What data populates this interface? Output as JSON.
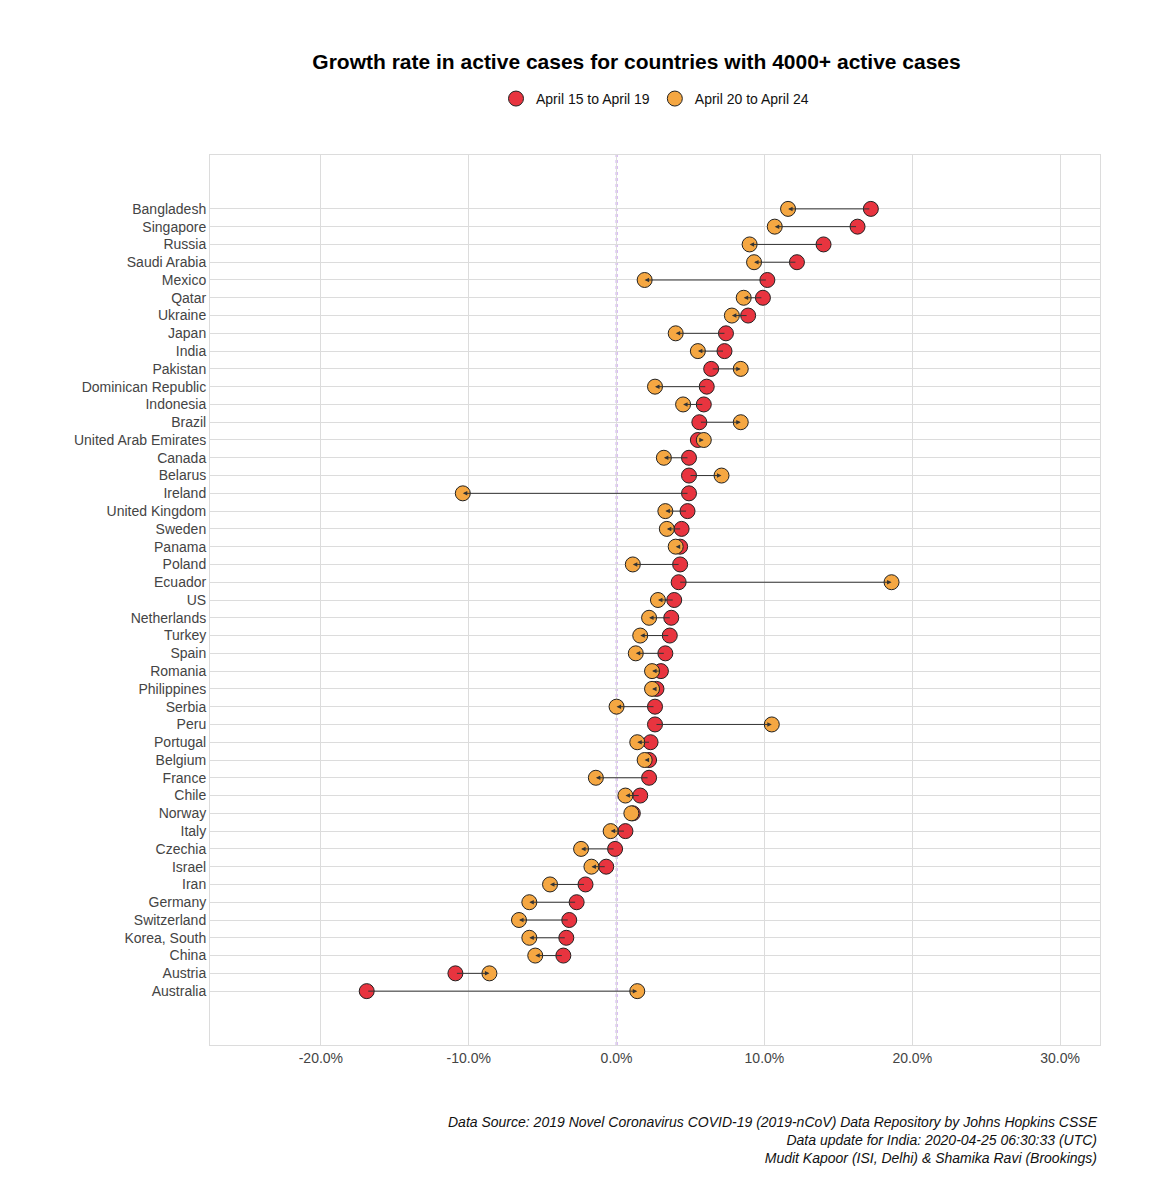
{
  "chart_data": {
    "type": "dumbbell",
    "title": "Growth rate in active cases for countries with 4000+ active cases",
    "orientation": "horizontal",
    "categories": [
      "Bangladesh",
      "Singapore",
      "Russia",
      "Saudi Arabia",
      "Mexico",
      "Qatar",
      "Ukraine",
      "Japan",
      "India",
      "Pakistan",
      "Dominican Republic",
      "Indonesia",
      "Brazil",
      "United Arab Emirates",
      "Canada",
      "Belarus",
      "Ireland",
      "United Kingdom",
      "Sweden",
      "Panama",
      "Poland",
      "Ecuador",
      "US",
      "Netherlands",
      "Turkey",
      "Spain",
      "Romania",
      "Philippines",
      "Serbia",
      "Peru",
      "Portugal",
      "Belgium",
      "France",
      "Chile",
      "Norway",
      "Italy",
      "Czechia",
      "Israel",
      "Iran",
      "Germany",
      "Switzerland",
      "Korea, South",
      "China",
      "Austria",
      "Australia"
    ],
    "series": [
      {
        "name": "April 15 to April 19",
        "color": "#e8343f",
        "values": [
          17.2,
          16.3,
          14.0,
          12.2,
          10.2,
          9.9,
          8.9,
          7.4,
          7.3,
          6.4,
          6.1,
          5.9,
          5.6,
          5.5,
          4.9,
          4.9,
          4.9,
          4.8,
          4.4,
          4.3,
          4.3,
          4.2,
          3.9,
          3.7,
          3.6,
          3.3,
          3.0,
          2.7,
          2.6,
          2.6,
          2.3,
          2.2,
          2.2,
          1.6,
          1.1,
          0.6,
          -0.1,
          -0.7,
          -2.1,
          -2.7,
          -3.2,
          -3.4,
          -3.6,
          -10.9,
          -16.9
        ]
      },
      {
        "name": "April 20 to April 24",
        "color": "#f5a742",
        "values": [
          11.6,
          10.7,
          9.0,
          9.3,
          1.9,
          8.6,
          7.8,
          4.0,
          5.5,
          8.4,
          2.6,
          4.5,
          8.4,
          5.9,
          3.2,
          7.1,
          -10.4,
          3.3,
          3.4,
          4.0,
          1.1,
          18.6,
          2.8,
          2.2,
          1.6,
          1.3,
          2.4,
          2.4,
          0.0,
          10.5,
          1.4,
          1.9,
          -1.4,
          0.6,
          1.0,
          -0.4,
          -2.4,
          -1.7,
          -4.5,
          -5.9,
          -6.6,
          -5.9,
          -5.5,
          -8.6,
          1.4
        ]
      }
    ],
    "xlim": [
      -27.5,
      32.7
    ],
    "xticks": [
      {
        "value": -20,
        "label": "-20.0%"
      },
      {
        "value": -10,
        "label": "-10.0%"
      },
      {
        "value": 0,
        "label": "0.0%"
      },
      {
        "value": 10,
        "label": "10.0%"
      },
      {
        "value": 20,
        "label": "20.0%"
      },
      {
        "value": 30,
        "label": "30.0%"
      }
    ],
    "reference_lines": [
      {
        "x": 0,
        "color": "#8a2be2",
        "line_style": "dot"
      }
    ],
    "grid": true,
    "legend": "top",
    "marker": "circle",
    "caption": [
      "Data Source: 2019 Novel Coronavirus COVID-19 (2019-nCoV) Data Repository by Johns Hopkins CSSE",
      "Data update for India: 2020-04-25 06:30:33 (UTC)",
      "Mudit Kapoor (ISI, Delhi) & Shamika Ravi (Brookings)"
    ]
  }
}
